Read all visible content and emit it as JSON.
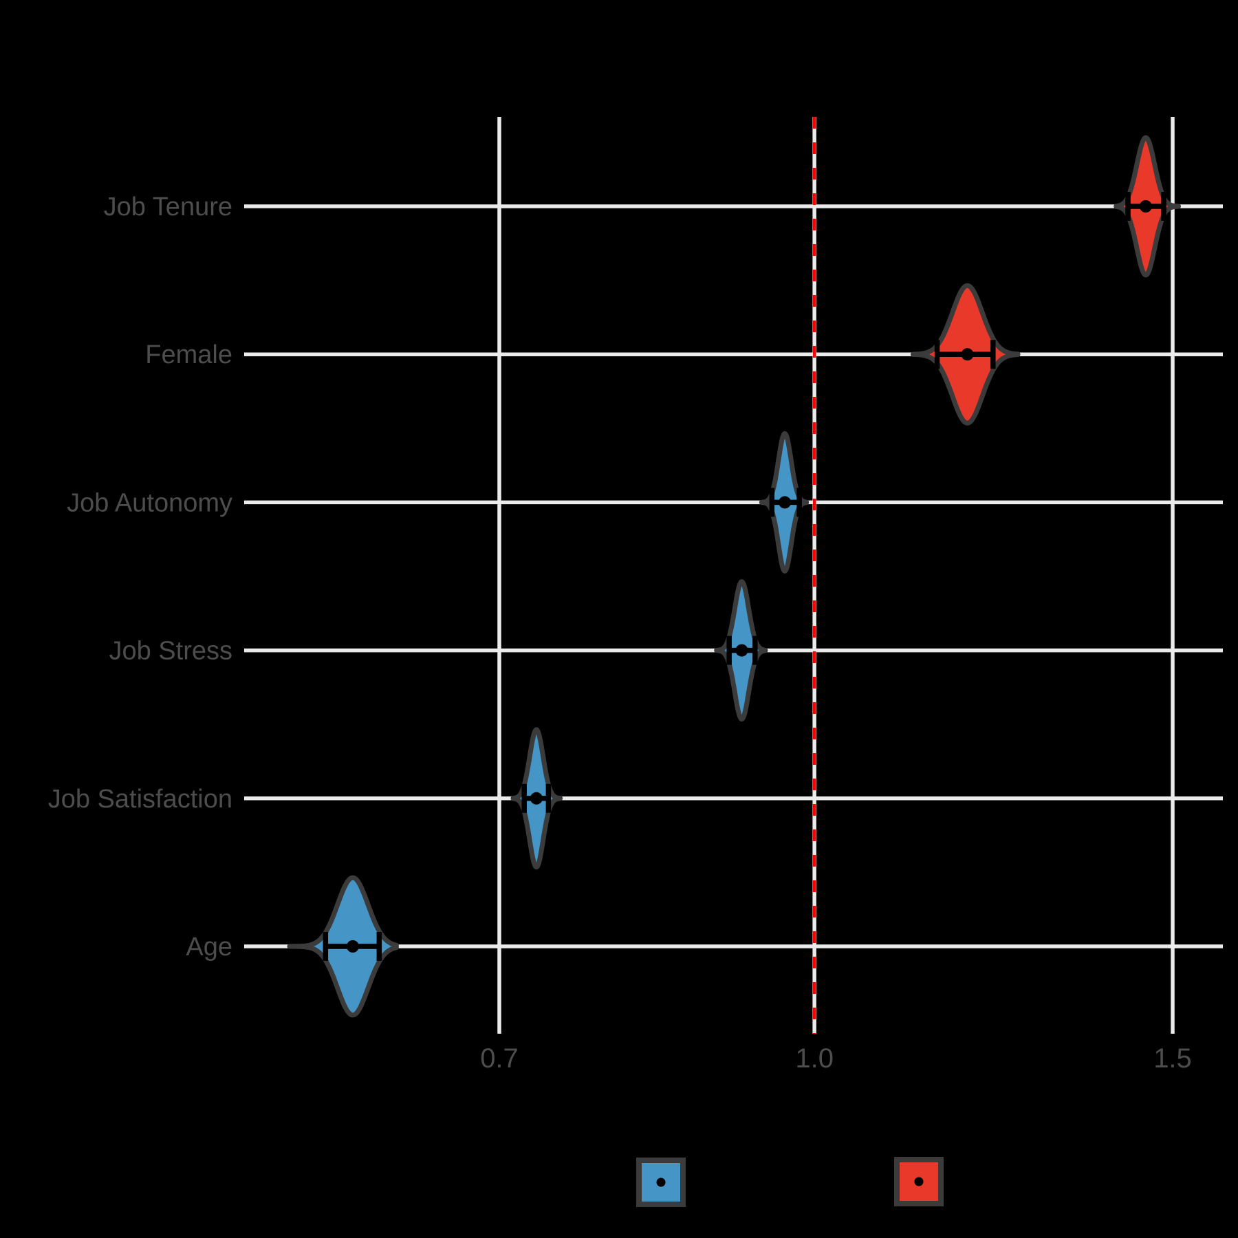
{
  "figure": {
    "background": "#000000",
    "title": ""
  },
  "chart_data": {
    "type": "violin",
    "orientation": "horizontal",
    "title": "",
    "xlabel": "",
    "ylabel": "",
    "x_axis": {
      "scale": "log",
      "tick_labels": [
        "0.7",
        "1.0",
        "1.5"
      ],
      "tick_values": [
        0.7,
        1.0,
        1.5
      ],
      "range": [
        0.52,
        1.62
      ],
      "grid": true
    },
    "y_axis": {
      "categories_top_to_bottom": [
        "Job Tenure",
        "Female",
        "Job Autonomy",
        "Job Stress",
        "Job Satisfaction",
        "Age"
      ],
      "grid": true
    },
    "reference_line": {
      "x": 1.0,
      "style": "dashed",
      "color": "#FF0000"
    },
    "series": [
      {
        "label": "Job Tenure",
        "group": "red",
        "color": "#E8392B",
        "median": 1.455,
        "ci_low": 1.426,
        "ci_high": 1.485,
        "violin_min": 1.407,
        "violin_max": 1.51
      },
      {
        "label": "Female",
        "group": "red",
        "color": "#E8392B",
        "median": 1.189,
        "ci_low": 1.149,
        "ci_high": 1.224,
        "violin_min": 1.118,
        "violin_max": 1.259
      },
      {
        "label": "Job Autonomy",
        "group": "blue",
        "color": "#4595C7",
        "median": 0.967,
        "ci_low": 0.953,
        "ci_high": 0.983,
        "violin_min": 0.942,
        "violin_max": 0.991
      },
      {
        "label": "Job Stress",
        "group": "blue",
        "color": "#4595C7",
        "median": 0.921,
        "ci_low": 0.908,
        "ci_high": 0.935,
        "violin_min": 0.895,
        "violin_max": 0.946
      },
      {
        "label": "Job Satisfaction",
        "group": "blue",
        "color": "#4595C7",
        "median": 0.73,
        "ci_low": 0.72,
        "ci_high": 0.74,
        "violin_min": 0.711,
        "violin_max": 0.75
      },
      {
        "label": "Age",
        "group": "blue",
        "color": "#4595C7",
        "median": 0.593,
        "ci_low": 0.575,
        "ci_high": 0.611,
        "violin_min": 0.552,
        "violin_max": 0.623
      }
    ],
    "legend": {
      "position": "bottom",
      "labels_visible": false,
      "items": [
        {
          "name": "blue-group",
          "color": "#4595C7"
        },
        {
          "name": "red-group",
          "color": "#E8392B"
        }
      ]
    },
    "point_interval": {
      "point": "median-dot",
      "interval": "crossbar-with-caps"
    }
  },
  "colors": {
    "background": "#000000",
    "gridline": "#EBEBEB",
    "axis_text": "#4D4D4D",
    "violin_outline": "#3B3B3B",
    "interval_black": "#000000",
    "reference_red": "#FF0000"
  }
}
